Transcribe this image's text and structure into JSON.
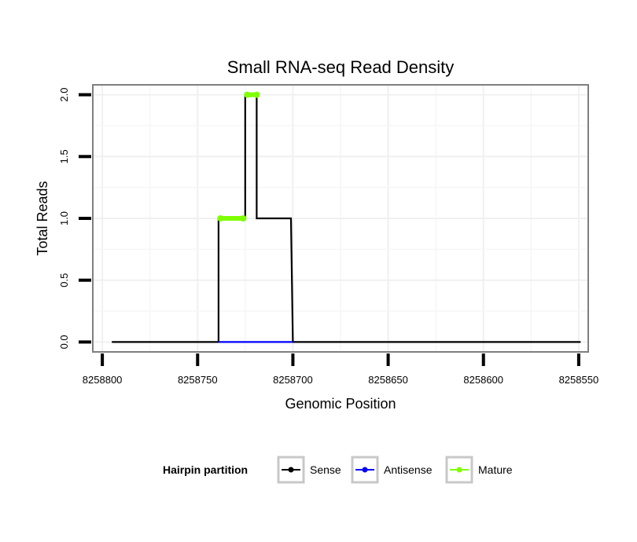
{
  "chart_data": {
    "type": "line",
    "title": "Small RNA-seq Read Density",
    "xlabel": "Genomic Position",
    "ylabel": "Total Reads",
    "x_reversed": true,
    "xlim": [
      8258805,
      8258545
    ],
    "ylim": [
      -0.08,
      2.08
    ],
    "xticks": [
      8258800,
      8258750,
      8258700,
      8258650,
      8258600,
      8258550
    ],
    "xtick_labels": [
      "8258800",
      "8258750",
      "8258700",
      "8258650",
      "8258600",
      "8258550"
    ],
    "yticks": [
      0,
      0.5,
      1,
      1.5,
      2
    ],
    "ytick_labels": [
      "0.0",
      "0.5",
      "1.0",
      "1.5",
      "2.0"
    ],
    "grid": true,
    "legend_position": "bottom",
    "legend_title": "Hairpin partition",
    "series": [
      {
        "name": "Sense",
        "color": "#000000",
        "points": [
          [
            8258795,
            0
          ],
          [
            8258739,
            0
          ],
          [
            8258739,
            1
          ],
          [
            8258725,
            1
          ],
          [
            8258725,
            2
          ],
          [
            8258719,
            2
          ],
          [
            8258719,
            1
          ],
          [
            8258701,
            1
          ],
          [
            8258700,
            0
          ],
          [
            8258549,
            0
          ]
        ]
      },
      {
        "name": "Antisense",
        "color": "#0000ff",
        "points": [
          [
            8258739,
            0
          ],
          [
            8258700,
            0
          ]
        ]
      },
      {
        "name": "Mature",
        "color": "#7fff00",
        "segments": [
          [
            [
              8258738,
              1
            ],
            [
              8258726,
              1
            ]
          ],
          [
            [
              8258724,
              2
            ],
            [
              8258719,
              2
            ]
          ]
        ]
      }
    ]
  }
}
